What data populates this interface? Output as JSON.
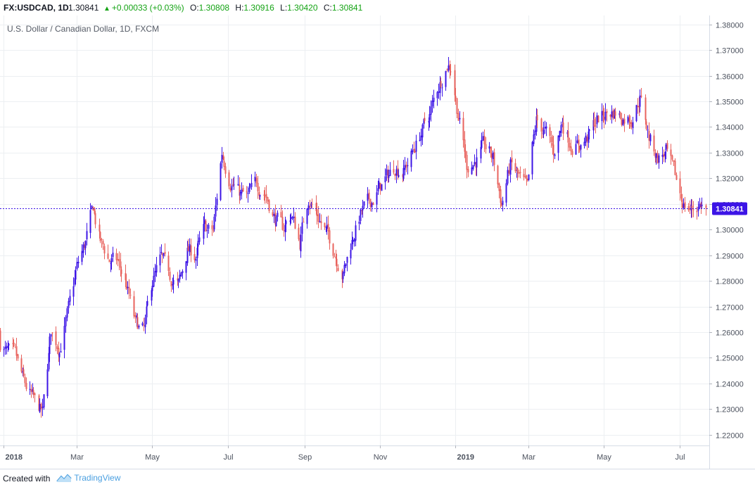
{
  "header": {
    "symbol": "FX:USDCAD, 1D",
    "last": "1.30841",
    "change_arrow": "▲",
    "change": "+0.00033 (+0.03%)",
    "o_label": "O:",
    "o_value": "1.30808",
    "h_label": "H:",
    "h_value": "1.30916",
    "l_label": "L:",
    "l_value": "1.30420",
    "c_label": "C:",
    "c_value": "1.30841"
  },
  "footer": {
    "created_with": "Created with",
    "brand": "TradingView"
  },
  "colors": {
    "up": "#3c14e6",
    "down": "#e8635e",
    "grid": "#eceff2",
    "price_line": "#3c14e6",
    "price_label_bg": "#3c14e6"
  },
  "chart_data": {
    "type": "candlestick",
    "title": "U.S. Dollar / Canadian Dollar, 1D, FXCM",
    "ylim": [
      1.2158,
      1.3835
    ],
    "y_ticks": [
      "1.38000",
      "1.37000",
      "1.36000",
      "1.35000",
      "1.34000",
      "1.33000",
      "1.32000",
      "1.31000",
      "1.30000",
      "1.29000",
      "1.28000",
      "1.27000",
      "1.26000",
      "1.25000",
      "1.24000",
      "1.23000",
      "1.22000"
    ],
    "x_range": [
      "2017-12-29",
      "2019-07-25"
    ],
    "x_ticks": [
      {
        "label": "2018",
        "date": "2018-01-01",
        "bold": true
      },
      {
        "label": "Mar",
        "date": "2018-03-01",
        "bold": false
      },
      {
        "label": "May",
        "date": "2018-05-01",
        "bold": false
      },
      {
        "label": "Jul",
        "date": "2018-07-01",
        "bold": false
      },
      {
        "label": "Sep",
        "date": "2018-09-01",
        "bold": false
      },
      {
        "label": "Nov",
        "date": "2018-11-01",
        "bold": false
      },
      {
        "label": "2019",
        "date": "2019-01-01",
        "bold": true
      },
      {
        "label": "Mar",
        "date": "2019-03-01",
        "bold": false
      },
      {
        "label": "May",
        "date": "2019-05-01",
        "bold": false
      },
      {
        "label": "Jul",
        "date": "2019-07-01",
        "bold": false
      }
    ],
    "last_price": "1.30841",
    "last_value": 1.30841,
    "close_anchors": [
      [
        "2017-12-29",
        1.256
      ],
      [
        "2018-01-03",
        1.252
      ],
      [
        "2018-01-10",
        1.25
      ],
      [
        "2018-01-17",
        1.24
      ],
      [
        "2018-01-25",
        1.233
      ],
      [
        "2018-02-01",
        1.228
      ],
      [
        "2018-02-08",
        1.26
      ],
      [
        "2018-02-15",
        1.254
      ],
      [
        "2018-02-22",
        1.268
      ],
      [
        "2018-03-01",
        1.285
      ],
      [
        "2018-03-08",
        1.295
      ],
      [
        "2018-03-14",
        1.308
      ],
      [
        "2018-03-20",
        1.295
      ],
      [
        "2018-03-27",
        1.288
      ],
      [
        "2018-04-03",
        1.287
      ],
      [
        "2018-04-10",
        1.278
      ],
      [
        "2018-04-17",
        1.263
      ],
      [
        "2018-04-24",
        1.26
      ],
      [
        "2018-05-01",
        1.28
      ],
      [
        "2018-05-08",
        1.288
      ],
      [
        "2018-05-15",
        1.282
      ],
      [
        "2018-05-22",
        1.278
      ],
      [
        "2018-05-29",
        1.292
      ],
      [
        "2018-06-05",
        1.29
      ],
      [
        "2018-06-12",
        1.3
      ],
      [
        "2018-06-19",
        1.299
      ],
      [
        "2018-06-26",
        1.33
      ],
      [
        "2018-07-03",
        1.32
      ],
      [
        "2018-07-10",
        1.314
      ],
      [
        "2018-07-17",
        1.312
      ],
      [
        "2018-07-24",
        1.318
      ],
      [
        "2018-07-31",
        1.315
      ],
      [
        "2018-08-07",
        1.305
      ],
      [
        "2018-08-14",
        1.3
      ],
      [
        "2018-08-21",
        1.306
      ],
      [
        "2018-08-28",
        1.295
      ],
      [
        "2018-09-04",
        1.313
      ],
      [
        "2018-09-11",
        1.306
      ],
      [
        "2018-09-18",
        1.299
      ],
      [
        "2018-09-25",
        1.292
      ],
      [
        "2018-10-02",
        1.283
      ],
      [
        "2018-10-09",
        1.296
      ],
      [
        "2018-10-16",
        1.306
      ],
      [
        "2018-10-23",
        1.31
      ],
      [
        "2018-10-30",
        1.315
      ],
      [
        "2018-11-06",
        1.32
      ],
      [
        "2018-11-13",
        1.325
      ],
      [
        "2018-11-20",
        1.323
      ],
      [
        "2018-11-27",
        1.33
      ],
      [
        "2018-12-04",
        1.338
      ],
      [
        "2018-12-11",
        1.345
      ],
      [
        "2018-12-18",
        1.356
      ],
      [
        "2018-12-25",
        1.365
      ],
      [
        "2018-12-28",
        1.364
      ],
      [
        "2019-01-03",
        1.345
      ],
      [
        "2019-01-10",
        1.325
      ],
      [
        "2019-01-17",
        1.327
      ],
      [
        "2019-01-24",
        1.332
      ],
      [
        "2019-01-31",
        1.328
      ],
      [
        "2019-02-07",
        1.31
      ],
      [
        "2019-02-14",
        1.325
      ],
      [
        "2019-02-21",
        1.32
      ],
      [
        "2019-02-28",
        1.315
      ],
      [
        "2019-03-07",
        1.342
      ],
      [
        "2019-03-14",
        1.338
      ],
      [
        "2019-03-21",
        1.33
      ],
      [
        "2019-03-28",
        1.342
      ],
      [
        "2019-04-04",
        1.334
      ],
      [
        "2019-04-11",
        1.333
      ],
      [
        "2019-04-18",
        1.336
      ],
      [
        "2019-04-25",
        1.343
      ],
      [
        "2019-05-02",
        1.345
      ],
      [
        "2019-05-09",
        1.346
      ],
      [
        "2019-05-16",
        1.344
      ],
      [
        "2019-05-23",
        1.344
      ],
      [
        "2019-05-30",
        1.352
      ],
      [
        "2019-06-06",
        1.336
      ],
      [
        "2019-06-13",
        1.328
      ],
      [
        "2019-06-20",
        1.33
      ],
      [
        "2019-06-27",
        1.32
      ],
      [
        "2019-07-04",
        1.31
      ],
      [
        "2019-07-11",
        1.308
      ],
      [
        "2019-07-18",
        1.31
      ],
      [
        "2019-07-22",
        1.3084
      ]
    ]
  }
}
